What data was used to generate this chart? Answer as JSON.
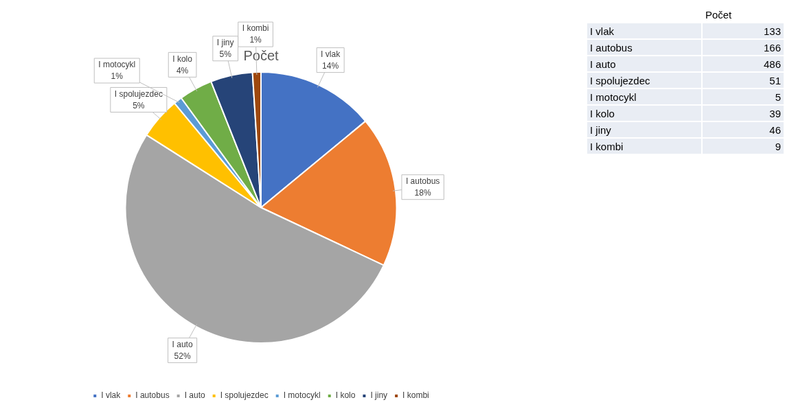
{
  "chart_data": [
    {
      "type": "pie",
      "title": "Počet",
      "categories": [
        "I vlak",
        "I autobus",
        "I auto",
        "I spolujezdec",
        "I motocykl",
        "I kolo",
        "I jiny",
        "I kombi"
      ],
      "values": [
        14,
        18,
        52,
        5,
        1,
        4,
        5,
        1
      ],
      "colors": [
        "#4472c4",
        "#ed7d31",
        "#a5a5a5",
        "#ffc000",
        "#5b9bd5",
        "#70ad47",
        "#264478",
        "#9e480e"
      ],
      "value_labels": [
        "14%",
        "18%",
        "52%",
        "5%",
        "1%",
        "4%",
        "5%",
        "1%"
      ],
      "legend": "bottom"
    },
    {
      "type": "other",
      "title": "Počet",
      "categories": [
        "I vlak",
        "I autobus",
        "I auto",
        "I spolujezdec",
        "I motocykl",
        "I kolo",
        "I jiny",
        "I kombi"
      ],
      "values": [
        133,
        166,
        486,
        51,
        5,
        39,
        46,
        9
      ],
      "data_labels": true
    }
  ]
}
